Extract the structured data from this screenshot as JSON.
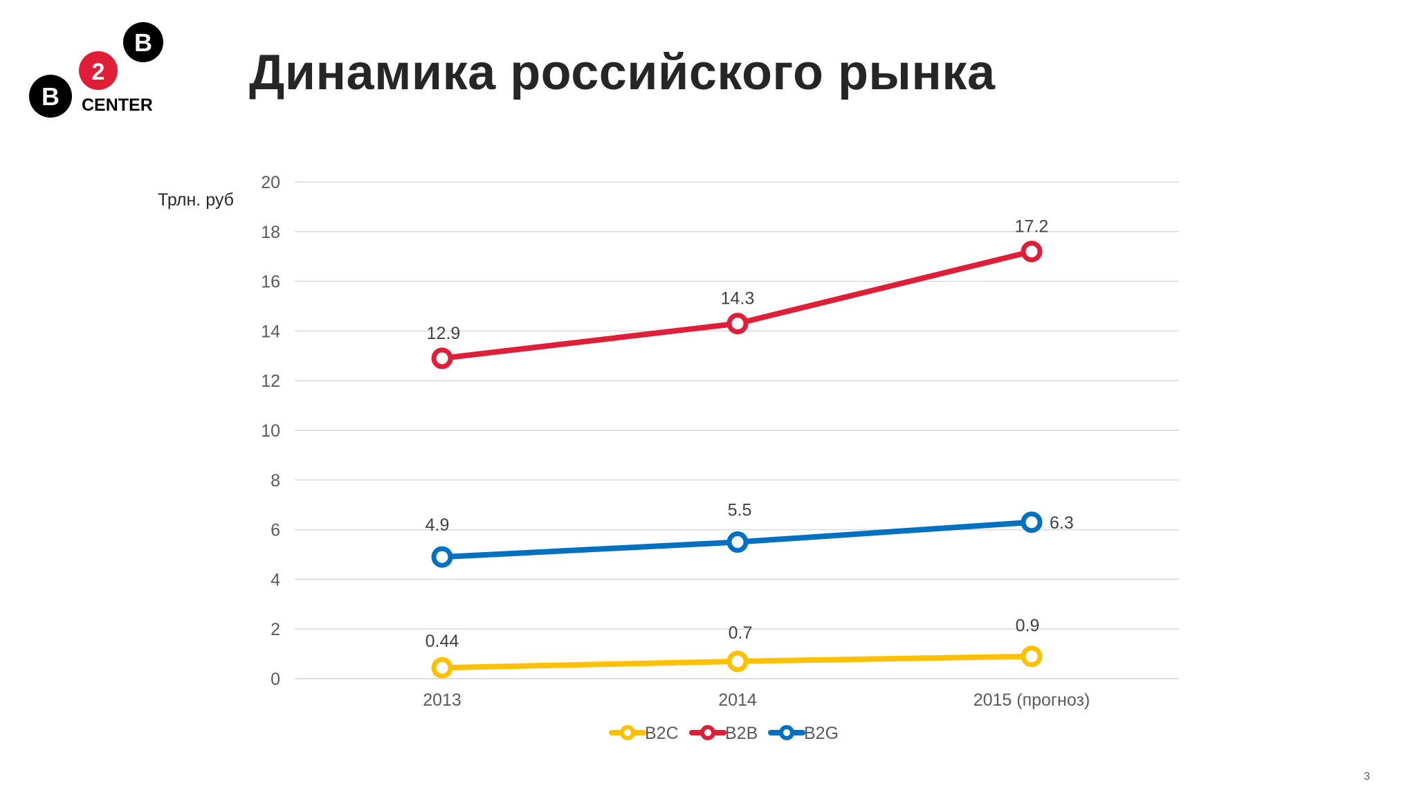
{
  "slide": {
    "title": "Динамика российского рынка",
    "page_number": "3"
  },
  "logo": {
    "letter_left": "B",
    "number": "2",
    "letter_right": "B",
    "word": "CENTER"
  },
  "chart_data": {
    "type": "line",
    "title": "",
    "ylabel": "Трлн. руб",
    "xlabel": "",
    "categories": [
      "2013",
      "2014",
      "2015 (прогноз)"
    ],
    "ylim": [
      0,
      20
    ],
    "yticks": [
      0,
      2,
      4,
      6,
      8,
      10,
      12,
      14,
      16,
      18,
      20
    ],
    "grid": true,
    "legend_position": "bottom",
    "series": [
      {
        "name": "B2C",
        "color": "#ffc000",
        "values": [
          0.44,
          0.7,
          0.9
        ],
        "labels": [
          "0.44",
          "0.7",
          "0.9"
        ]
      },
      {
        "name": "B2B",
        "color": "#e01e37",
        "values": [
          12.9,
          14.3,
          17.2
        ],
        "labels": [
          "12.9",
          "14.3",
          "17.2"
        ]
      },
      {
        "name": "B2G",
        "color": "#0070c0",
        "values": [
          4.9,
          5.5,
          6.3
        ],
        "labels": [
          "4.9",
          "5.5",
          "6.3"
        ]
      }
    ]
  }
}
